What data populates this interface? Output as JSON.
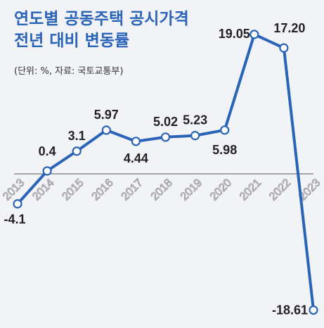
{
  "chart_data": {
    "type": "line",
    "title_lines": [
      "연도별 공동주택 공시가격",
      "전년 대비 변동률"
    ],
    "subtitle": "(단위: %, 자료: 국토교통부)",
    "x": [
      "2013",
      "2014",
      "2015",
      "2016",
      "2017",
      "2018",
      "2019",
      "2020",
      "2021",
      "2022",
      "2023"
    ],
    "y": [
      -4.1,
      0.4,
      3.1,
      5.97,
      4.44,
      5.02,
      5.23,
      5.98,
      19.05,
      17.2,
      -18.61
    ],
    "data_labels": [
      "-4.1",
      "0.4",
      "3.1",
      "5.97",
      "4.44",
      "5.02",
      "5.23",
      "5.98",
      "19.05",
      "17.20",
      "-18.61"
    ],
    "colors": {
      "line": "#2a64b8",
      "title": "#2a64b8",
      "background": "#f2f3f7"
    },
    "grid": false,
    "legend": "none"
  }
}
